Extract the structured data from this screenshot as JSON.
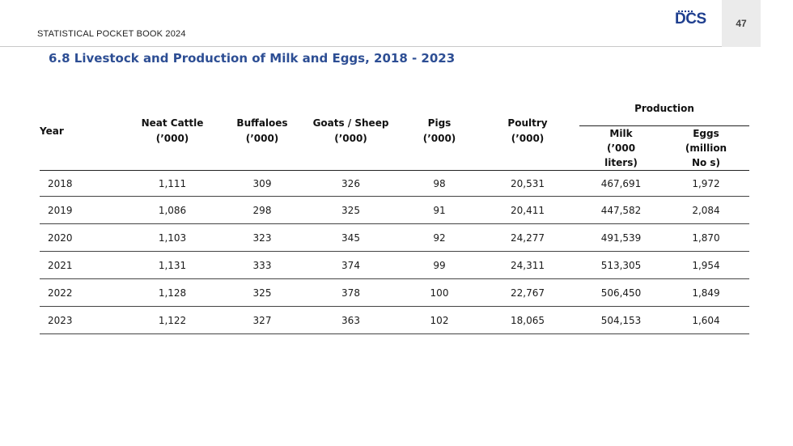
{
  "header": {
    "title": "STATISTICAL POCKET BOOK 2024",
    "logo_text": "DCS",
    "page_number": "47"
  },
  "section": {
    "title": "6.8 Livestock and Production of Milk and Eggs, 2018 - 2023"
  },
  "table": {
    "headers": {
      "year": "Year",
      "neat_cattle": [
        "Neat Cattle",
        "(’000)"
      ],
      "buffaloes": [
        "Buffaloes",
        "(’000)"
      ],
      "goats_sheep": [
        "Goats / Sheep",
        "(’000)"
      ],
      "pigs": [
        "Pigs",
        "(’000)"
      ],
      "poultry": [
        "Poultry",
        "(’000)"
      ],
      "production": "Production",
      "milk": [
        "Milk",
        "(’000",
        "liters)"
      ],
      "eggs": [
        "Eggs",
        "(million",
        "No s)"
      ]
    },
    "rows": [
      {
        "year": "2018",
        "neat_cattle": "1,111",
        "buffaloes": "309",
        "goats_sheep": "326",
        "pigs": "98",
        "poultry": "20,531",
        "milk": "467,691",
        "eggs": "1,972"
      },
      {
        "year": "2019",
        "neat_cattle": "1,086",
        "buffaloes": "298",
        "goats_sheep": "325",
        "pigs": "91",
        "poultry": "20,411",
        "milk": "447,582",
        "eggs": "2,084"
      },
      {
        "year": "2020",
        "neat_cattle": "1,103",
        "buffaloes": "323",
        "goats_sheep": "345",
        "pigs": "92",
        "poultry": "24,277",
        "milk": "491,539",
        "eggs": "1,870"
      },
      {
        "year": "2021",
        "neat_cattle": "1,131",
        "buffaloes": "333",
        "goats_sheep": "374",
        "pigs": "99",
        "poultry": "24,311",
        "milk": "513,305",
        "eggs": "1,954"
      },
      {
        "year": "2022",
        "neat_cattle": "1,128",
        "buffaloes": "325",
        "goats_sheep": "378",
        "pigs": "100",
        "poultry": "22,767",
        "milk": "506,450",
        "eggs": "1,849"
      },
      {
        "year": "2023",
        "neat_cattle": "1,122",
        "buffaloes": "327",
        "goats_sheep": "363",
        "pigs": "102",
        "poultry": "18,065",
        "milk": "504,153",
        "eggs": "1,604"
      }
    ]
  }
}
